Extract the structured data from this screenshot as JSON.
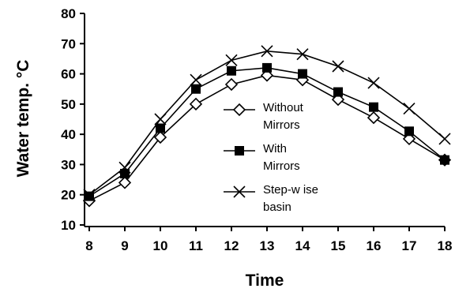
{
  "chart_data": {
    "type": "line",
    "title": "",
    "xlabel": "Time",
    "ylabel": "Water temp. °C",
    "xlim": [
      8,
      18
    ],
    "ylim": [
      10,
      80
    ],
    "x": [
      8,
      9,
      10,
      11,
      12,
      13,
      14,
      15,
      16,
      17,
      18
    ],
    "x_ticks": [
      "8",
      "9",
      "10",
      "11",
      "12",
      "13",
      "14",
      "15",
      "16",
      "17",
      "18"
    ],
    "y_ticks": [
      "10",
      "20",
      "30",
      "40",
      "50",
      "60",
      "70",
      "80"
    ],
    "grid": false,
    "legend_position": "center",
    "series": [
      {
        "name": "Without Mirrors",
        "legend_lines": [
          "Without",
          "Mirrors"
        ],
        "marker": "diamond-open",
        "values": [
          18,
          24,
          39,
          50,
          56.5,
          59.5,
          58,
          51.5,
          45.5,
          38.5,
          31.5
        ]
      },
      {
        "name": "With Mirrors",
        "legend_lines": [
          "With",
          "Mirrors"
        ],
        "marker": "square-filled",
        "values": [
          19.5,
          27,
          42,
          55,
          61,
          62,
          60,
          54,
          49,
          41,
          31.5
        ]
      },
      {
        "name": "Step-wise basin",
        "legend_lines": [
          "Step-w ise",
          "basin"
        ],
        "marker": "x",
        "values": [
          20,
          29,
          45,
          58,
          64.5,
          67.5,
          66.5,
          62.5,
          57,
          48.5,
          38.5
        ]
      }
    ]
  }
}
